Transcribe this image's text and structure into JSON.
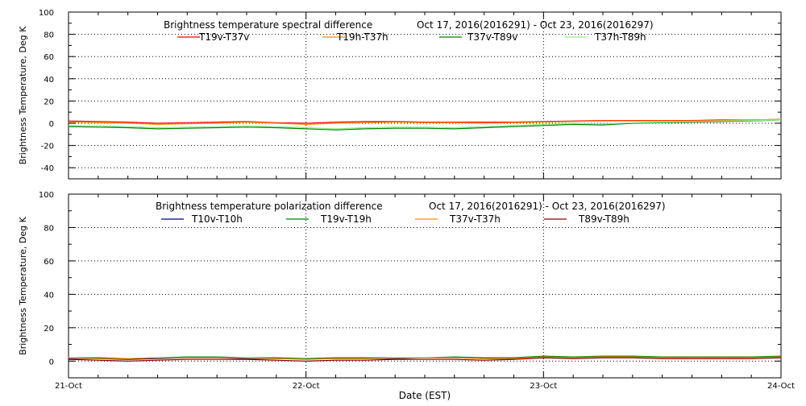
{
  "chart_data": [
    {
      "type": "line",
      "title": "Brightness temperature spectral difference",
      "date_range": "Oct 17, 2016(2016291) - Oct 23, 2016(2016297)",
      "ylabel": "Brightness Temperature, Deg K",
      "xlabel": "",
      "ylim": [
        -50,
        100
      ],
      "yticks": [
        -40,
        -20,
        0,
        20,
        40,
        60,
        80,
        100
      ],
      "xlim": [
        "2016-10-21",
        "2016-10-24"
      ],
      "grid": true,
      "legend_position": "top",
      "x_hours": [
        0,
        3,
        6,
        9,
        12,
        15,
        18,
        21,
        24,
        27,
        30,
        33,
        36,
        39,
        42,
        45,
        48,
        51,
        54,
        57,
        60,
        63,
        66,
        69,
        72
      ],
      "series": [
        {
          "name": "T19v-T37v",
          "color": "#ff0000",
          "values": [
            2,
            1.5,
            1,
            0,
            0.5,
            1,
            1.5,
            0.5,
            0,
            1,
            1.5,
            1.5,
            1,
            1,
            1,
            1,
            1.5,
            2,
            2.5,
            2.5,
            2.5,
            2.5,
            3,
            3,
            3.5
          ]
        },
        {
          "name": "T19h-T37h",
          "color": "#ff8c00",
          "values": [
            1,
            0.5,
            0,
            -1,
            -0.5,
            0,
            1,
            0,
            -1,
            0,
            0.5,
            1,
            0.5,
            0.5,
            0,
            0.5,
            1,
            1.5,
            2,
            2,
            2,
            2,
            2.5,
            3,
            3.5
          ]
        },
        {
          "name": "T37v-T89v",
          "color": "#008000",
          "values": [
            -3,
            -3.5,
            -4,
            -5,
            -4.5,
            -4,
            -3.5,
            -4,
            -5,
            -6,
            -5,
            -4.5,
            -4.5,
            -5,
            -4,
            -3,
            -2,
            -1,
            -1.5,
            0,
            0.5,
            1,
            1.5,
            2,
            3
          ]
        },
        {
          "name": "T37h-T89h",
          "color": "#90ee90",
          "values": [
            -2,
            -2.5,
            -3,
            -4,
            -3.5,
            -3,
            -2.5,
            -3,
            -4,
            -5,
            -4,
            -3.5,
            -3.5,
            -4,
            -3,
            -2,
            -1,
            0,
            -0.5,
            0.5,
            1,
            1.5,
            2,
            2.5,
            3
          ]
        }
      ]
    },
    {
      "type": "line",
      "title": "Brightness temperature polarization difference",
      "date_range": "Oct 17, 2016(2016291) - Oct 23, 2016(2016297)",
      "ylabel": "Brightness Temperature, Deg K",
      "xlabel": "Date (EST)",
      "ylim": [
        -10,
        100
      ],
      "yticks": [
        0,
        20,
        40,
        60,
        80,
        100
      ],
      "xlim": [
        "2016-10-21",
        "2016-10-24"
      ],
      "xticks": [
        "21-Oct",
        "22-Oct",
        "23-Oct",
        "24-Oct"
      ],
      "grid": true,
      "legend_position": "top",
      "x_hours": [
        0,
        3,
        6,
        9,
        12,
        15,
        18,
        21,
        24,
        27,
        30,
        33,
        36,
        39,
        42,
        45,
        48,
        51,
        54,
        57,
        60,
        63,
        66,
        69,
        72
      ],
      "series": [
        {
          "name": "T10v-T10h",
          "color": "#00008b",
          "values": [
            1.5,
            1.5,
            1,
            1.5,
            2,
            2,
            1.5,
            1.5,
            1.5,
            1.5,
            1.5,
            1.5,
            2,
            2,
            1.5,
            1.5,
            2.5,
            2,
            2.5,
            2.5,
            2,
            2,
            2,
            2,
            2.5
          ]
        },
        {
          "name": "T19v-T19h",
          "color": "#008000",
          "values": [
            2,
            2,
            1.5,
            2,
            2.5,
            2.5,
            2,
            2,
            1.5,
            2,
            2,
            2,
            2,
            2.5,
            2,
            2,
            3,
            2.5,
            3,
            3,
            2.5,
            2.5,
            2.5,
            2.5,
            3
          ]
        },
        {
          "name": "T37v-T37h",
          "color": "#ff8c00",
          "values": [
            2,
            1.5,
            1.5,
            2,
            2,
            2,
            2,
            1.5,
            1,
            1.5,
            1.5,
            2,
            2,
            2,
            1.5,
            1.5,
            2.5,
            2,
            2.5,
            2.5,
            2,
            2,
            2,
            2,
            2.5
          ]
        },
        {
          "name": "T89v-T89h",
          "color": "#8b0000",
          "values": [
            1,
            0.5,
            0,
            0.5,
            1,
            1,
            1,
            0.5,
            0,
            0.5,
            0.5,
            1,
            1,
            1,
            0.5,
            1,
            2,
            1.5,
            2,
            2,
            1.5,
            1.5,
            1.5,
            1.5,
            2
          ]
        }
      ]
    }
  ]
}
